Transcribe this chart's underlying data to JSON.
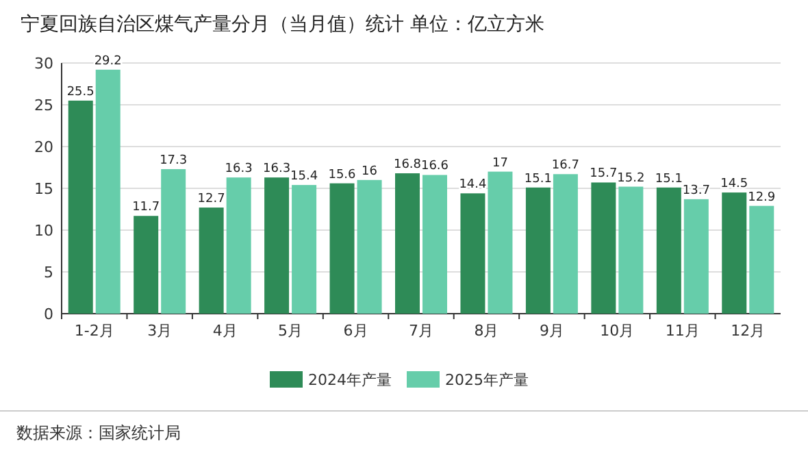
{
  "chart_data": {
    "type": "bar",
    "title": "宁夏回族自治区煤气产量分月（当月值）统计  单位：亿立方米",
    "categories": [
      "1-2月",
      "3月",
      "4月",
      "5月",
      "6月",
      "7月",
      "8月",
      "9月",
      "10月",
      "11月",
      "12月"
    ],
    "series": [
      {
        "name": "2024年产量",
        "color": "#2e8b57",
        "values": [
          25.5,
          11.7,
          12.7,
          16.3,
          15.6,
          16.8,
          14.4,
          15.1,
          15.7,
          15.1,
          14.5
        ]
      },
      {
        "name": "2025年产量",
        "color": "#66cdaa",
        "values": [
          29.2,
          17.3,
          16.3,
          15.4,
          16,
          16.6,
          17,
          16.7,
          15.2,
          13.7,
          12.9
        ]
      }
    ],
    "ylim": [
      0,
      30
    ],
    "yticks": [
      0,
      5,
      10,
      15,
      20,
      25,
      30
    ],
    "grid": "y",
    "legend": "bottom",
    "data_labels": true,
    "annotations": [
      "数据来源：国家统计局"
    ]
  }
}
